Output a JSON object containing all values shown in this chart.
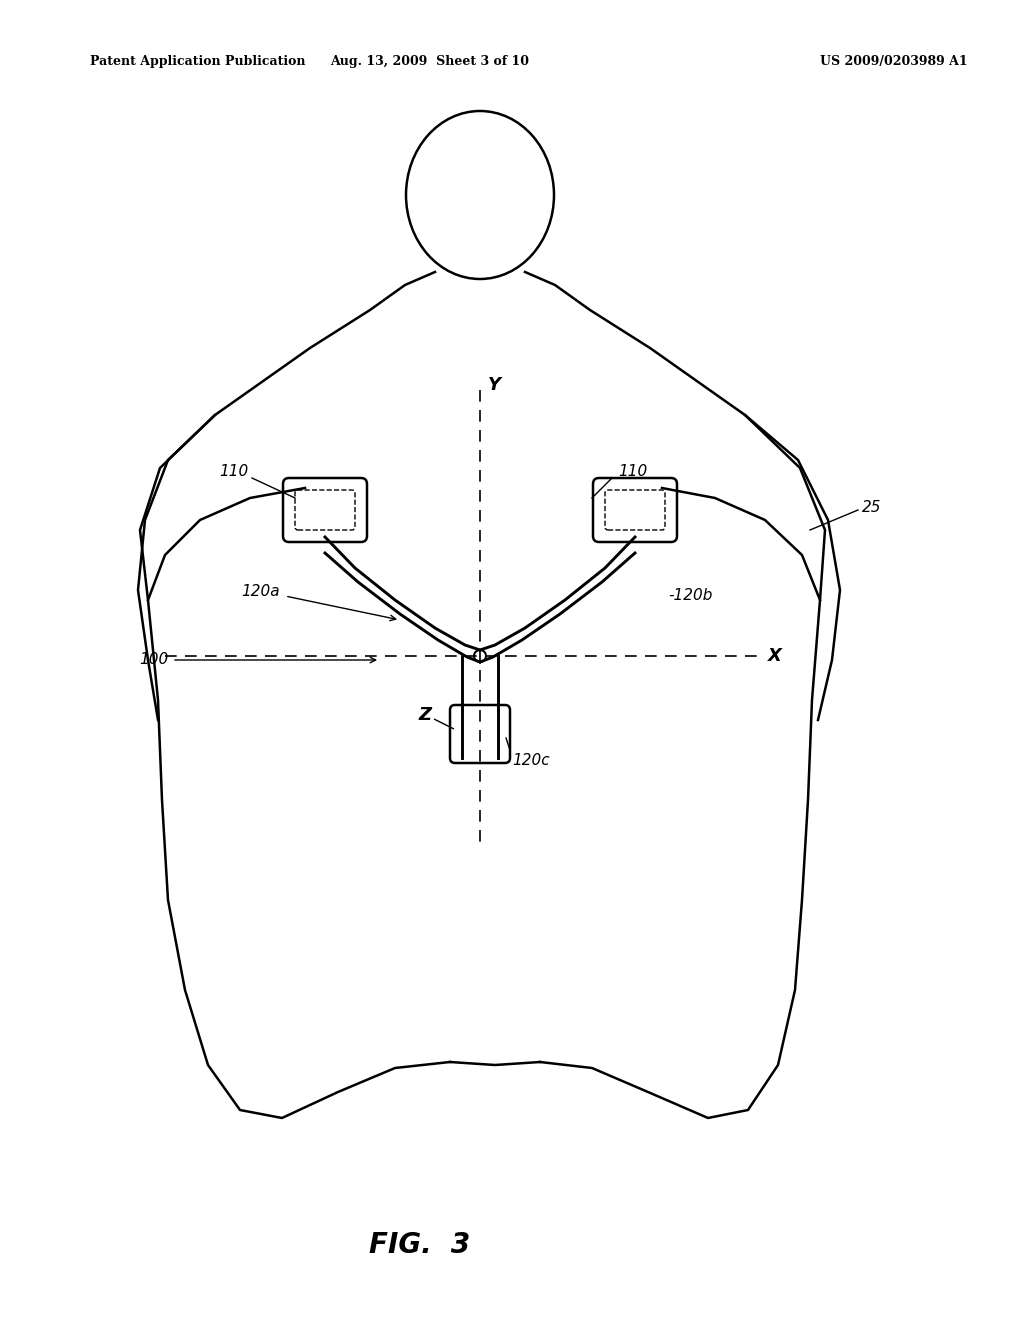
{
  "header_left": "Patent Application Publication",
  "header_center": "Aug. 13, 2009  Sheet 3 of 10",
  "header_right": "US 2009/0203989 A1",
  "figure_label": "FIG.  3",
  "background_color": "#ffffff",
  "line_color": "#000000"
}
